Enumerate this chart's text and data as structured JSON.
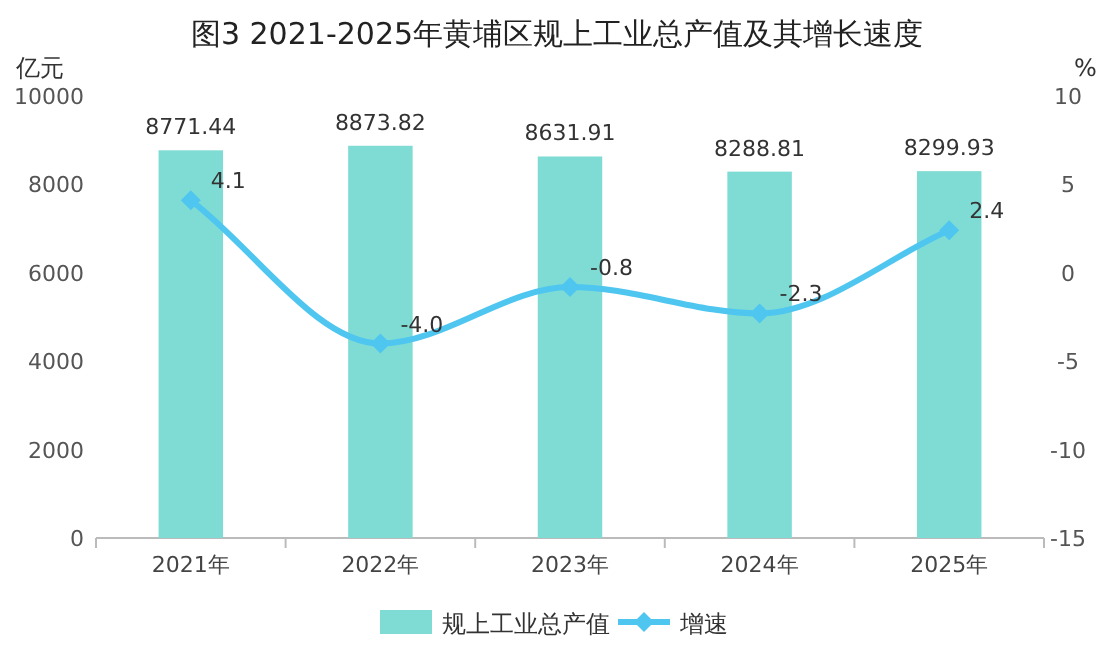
{
  "chart_data": {
    "type": "bar",
    "title": "图3 2021-2025年黄埔区规上工业总产值及其增长速度",
    "ylabel": "亿元",
    "y2label": "%",
    "categories": [
      "2021年",
      "2022年",
      "2023年",
      "2024年",
      "2025年"
    ],
    "series": [
      {
        "name": "规上工业总产值",
        "color": "#7fdcd4",
        "values": [
          8771.44,
          8873.82,
          8631.91,
          8288.81,
          8299.93
        ],
        "value_labels": [
          "8771.44",
          "8873.82",
          "8631.91",
          "8288.81",
          "8299.93"
        ]
      },
      {
        "name": "增速",
        "type": "line",
        "axis": "y2",
        "color": "#4fc6f0",
        "marker": "diamond",
        "values": [
          4.1,
          -4.0,
          -0.8,
          -2.3,
          2.4
        ],
        "value_labels": [
          "4.1",
          "-4.0",
          "-0.8",
          "-2.3",
          "2.4"
        ]
      }
    ],
    "ylim": [
      0,
      10000
    ],
    "yticks": [
      0,
      2000,
      4000,
      6000,
      8000,
      10000
    ],
    "y2lim": [
      -15,
      10
    ],
    "y2ticks": [
      -15,
      -10,
      -5,
      0,
      5,
      10
    ],
    "grid": false,
    "legend": "bottom"
  }
}
